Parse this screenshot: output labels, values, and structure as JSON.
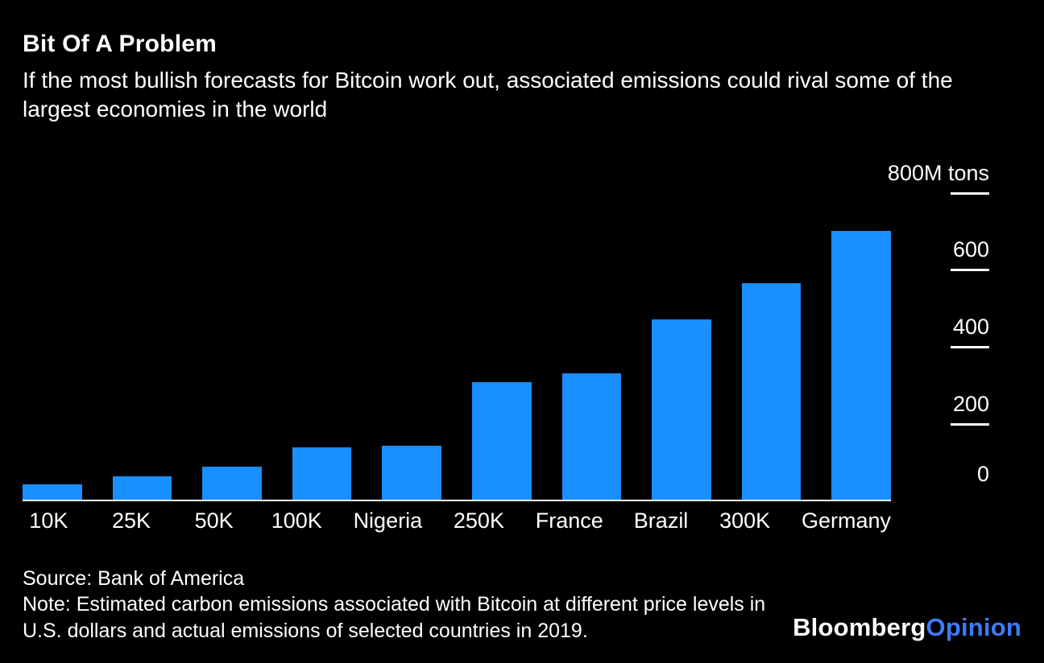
{
  "header": {
    "title": "Bit Of A Problem",
    "subtitle": "If the most bullish forecasts for Bitcoin work out, associated emissions could rival some of the largest economies in the world"
  },
  "chart_data": {
    "type": "bar",
    "title": "Bit Of A Problem",
    "categories": [
      "10K",
      "25K",
      "50K",
      "100K",
      "Nigeria",
      "250K",
      "France",
      "Brazil",
      "300K",
      "Germany"
    ],
    "values": [
      40,
      60,
      85,
      135,
      140,
      305,
      330,
      470,
      565,
      700
    ],
    "xlabel": "",
    "ylabel": "800M tons",
    "ylim": [
      0,
      800
    ],
    "yticks": [
      {
        "value": 800,
        "label": "800M tons"
      },
      {
        "value": 600,
        "label": "600"
      },
      {
        "value": 400,
        "label": "400"
      },
      {
        "value": 200,
        "label": "200"
      },
      {
        "value": 0,
        "label": "0"
      }
    ],
    "unit": "M tons",
    "bar_color": "#1a8fff",
    "grid": false,
    "legend": "none",
    "background": "#000000"
  },
  "footer": {
    "source": "Source: Bank of America",
    "note": "Note: Estimated carbon emissions associated with Bitcoin at different price levels in U.S. dollars and actual emissions of selected countries in 2019."
  },
  "logo": {
    "bloomberg": "Bloomberg",
    "opinion": "Opinion",
    "opinion_color": "#3e7bfa"
  }
}
